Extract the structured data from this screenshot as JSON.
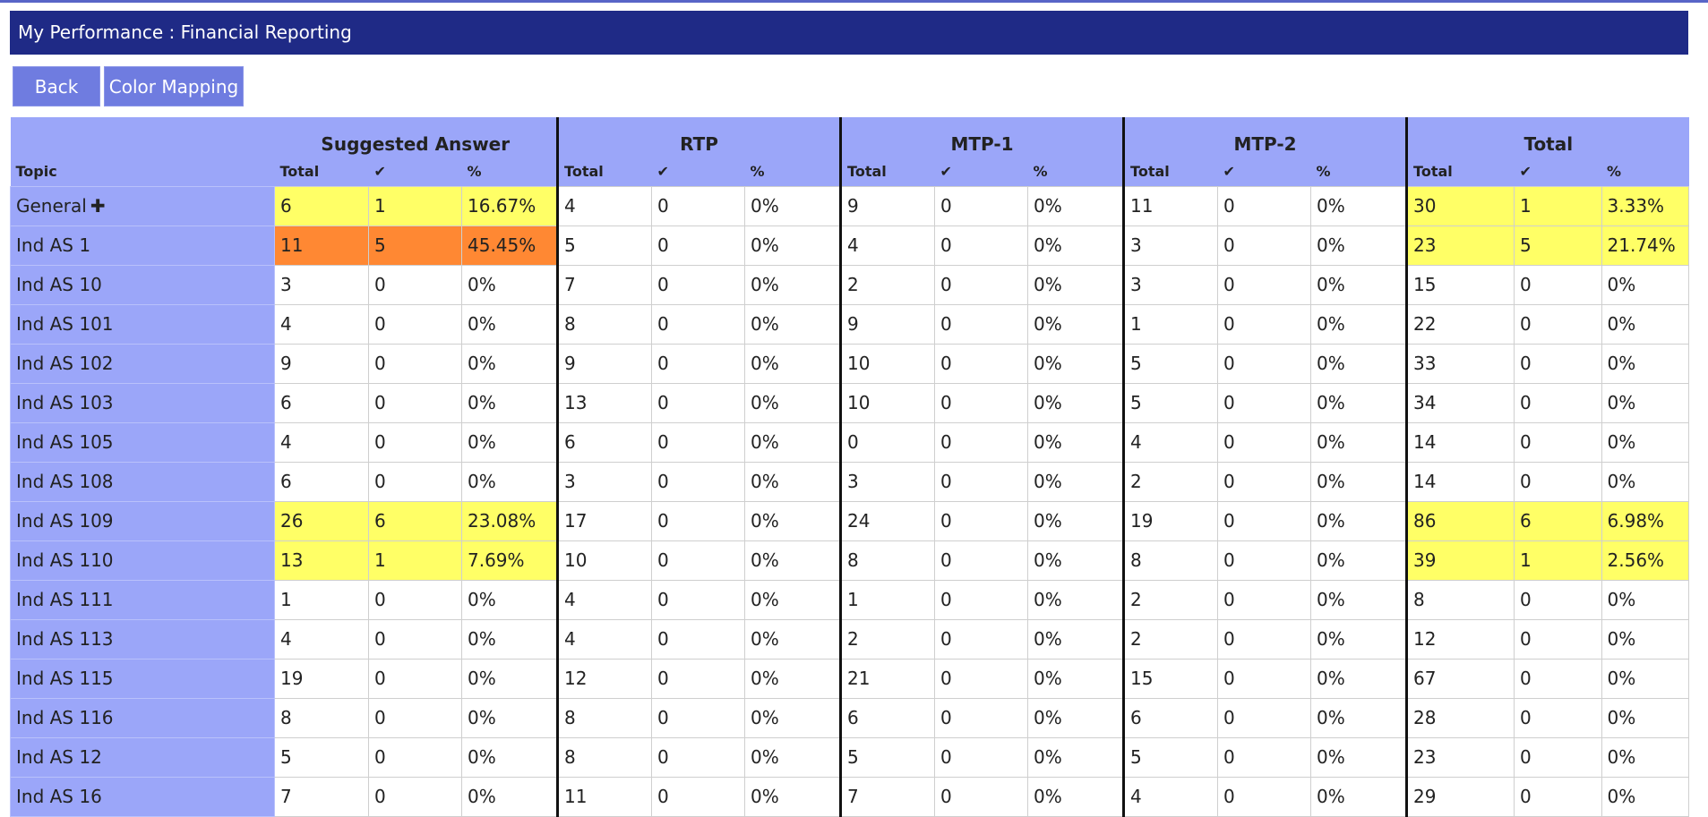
{
  "page": {
    "title": "My Performance : Financial Reporting"
  },
  "toolbar": {
    "back_label": "Back",
    "color_mapping_label": "Color Mapping"
  },
  "table": {
    "topic_header": "Topic",
    "groups": [
      "Suggested Answer",
      "RTP",
      "MTP-1",
      "MTP-2",
      "Total"
    ],
    "sub_headers": [
      "Total",
      "✔",
      "%"
    ],
    "expand_icon": "plus-icon",
    "colors": {
      "header_bg": "#9ba6f9",
      "yellow": "#ffff66",
      "orange": "#ff8833",
      "title_bg": "#1f2a86"
    },
    "rows": [
      {
        "topic": "General",
        "expandable": true,
        "cells": [
          [
            "6",
            "1",
            "16.67%"
          ],
          [
            "4",
            "0",
            "0%"
          ],
          [
            "9",
            "0",
            "0%"
          ],
          [
            "11",
            "0",
            "0%"
          ],
          [
            "30",
            "1",
            "3.33%"
          ]
        ],
        "hl": [
          "y",
          "",
          "",
          "",
          "y"
        ]
      },
      {
        "topic": "Ind AS 1",
        "cells": [
          [
            "11",
            "5",
            "45.45%"
          ],
          [
            "5",
            "0",
            "0%"
          ],
          [
            "4",
            "0",
            "0%"
          ],
          [
            "3",
            "0",
            "0%"
          ],
          [
            "23",
            "5",
            "21.74%"
          ]
        ],
        "hl": [
          "o",
          "",
          "",
          "",
          "y"
        ]
      },
      {
        "topic": "Ind AS 10",
        "cells": [
          [
            "3",
            "0",
            "0%"
          ],
          [
            "7",
            "0",
            "0%"
          ],
          [
            "2",
            "0",
            "0%"
          ],
          [
            "3",
            "0",
            "0%"
          ],
          [
            "15",
            "0",
            "0%"
          ]
        ],
        "hl": [
          "",
          "",
          "",
          "",
          ""
        ]
      },
      {
        "topic": "Ind AS 101",
        "cells": [
          [
            "4",
            "0",
            "0%"
          ],
          [
            "8",
            "0",
            "0%"
          ],
          [
            "9",
            "0",
            "0%"
          ],
          [
            "1",
            "0",
            "0%"
          ],
          [
            "22",
            "0",
            "0%"
          ]
        ],
        "hl": [
          "",
          "",
          "",
          "",
          ""
        ]
      },
      {
        "topic": "Ind AS 102",
        "cells": [
          [
            "9",
            "0",
            "0%"
          ],
          [
            "9",
            "0",
            "0%"
          ],
          [
            "10",
            "0",
            "0%"
          ],
          [
            "5",
            "0",
            "0%"
          ],
          [
            "33",
            "0",
            "0%"
          ]
        ],
        "hl": [
          "",
          "",
          "",
          "",
          ""
        ]
      },
      {
        "topic": "Ind AS 103",
        "cells": [
          [
            "6",
            "0",
            "0%"
          ],
          [
            "13",
            "0",
            "0%"
          ],
          [
            "10",
            "0",
            "0%"
          ],
          [
            "5",
            "0",
            "0%"
          ],
          [
            "34",
            "0",
            "0%"
          ]
        ],
        "hl": [
          "",
          "",
          "",
          "",
          ""
        ]
      },
      {
        "topic": "Ind AS 105",
        "cells": [
          [
            "4",
            "0",
            "0%"
          ],
          [
            "6",
            "0",
            "0%"
          ],
          [
            "0",
            "0",
            "0%"
          ],
          [
            "4",
            "0",
            "0%"
          ],
          [
            "14",
            "0",
            "0%"
          ]
        ],
        "hl": [
          "",
          "",
          "",
          "",
          ""
        ]
      },
      {
        "topic": "Ind AS 108",
        "cells": [
          [
            "6",
            "0",
            "0%"
          ],
          [
            "3",
            "0",
            "0%"
          ],
          [
            "3",
            "0",
            "0%"
          ],
          [
            "2",
            "0",
            "0%"
          ],
          [
            "14",
            "0",
            "0%"
          ]
        ],
        "hl": [
          "",
          "",
          "",
          "",
          ""
        ]
      },
      {
        "topic": "Ind AS 109",
        "cells": [
          [
            "26",
            "6",
            "23.08%"
          ],
          [
            "17",
            "0",
            "0%"
          ],
          [
            "24",
            "0",
            "0%"
          ],
          [
            "19",
            "0",
            "0%"
          ],
          [
            "86",
            "6",
            "6.98%"
          ]
        ],
        "hl": [
          "y",
          "",
          "",
          "",
          "y"
        ]
      },
      {
        "topic": "Ind AS 110",
        "cells": [
          [
            "13",
            "1",
            "7.69%"
          ],
          [
            "10",
            "0",
            "0%"
          ],
          [
            "8",
            "0",
            "0%"
          ],
          [
            "8",
            "0",
            "0%"
          ],
          [
            "39",
            "1",
            "2.56%"
          ]
        ],
        "hl": [
          "y",
          "",
          "",
          "",
          "y"
        ]
      },
      {
        "topic": "Ind AS 111",
        "cells": [
          [
            "1",
            "0",
            "0%"
          ],
          [
            "4",
            "0",
            "0%"
          ],
          [
            "1",
            "0",
            "0%"
          ],
          [
            "2",
            "0",
            "0%"
          ],
          [
            "8",
            "0",
            "0%"
          ]
        ],
        "hl": [
          "",
          "",
          "",
          "",
          ""
        ]
      },
      {
        "topic": "Ind AS 113",
        "cells": [
          [
            "4",
            "0",
            "0%"
          ],
          [
            "4",
            "0",
            "0%"
          ],
          [
            "2",
            "0",
            "0%"
          ],
          [
            "2",
            "0",
            "0%"
          ],
          [
            "12",
            "0",
            "0%"
          ]
        ],
        "hl": [
          "",
          "",
          "",
          "",
          ""
        ]
      },
      {
        "topic": "Ind AS 115",
        "cells": [
          [
            "19",
            "0",
            "0%"
          ],
          [
            "12",
            "0",
            "0%"
          ],
          [
            "21",
            "0",
            "0%"
          ],
          [
            "15",
            "0",
            "0%"
          ],
          [
            "67",
            "0",
            "0%"
          ]
        ],
        "hl": [
          "",
          "",
          "",
          "",
          ""
        ]
      },
      {
        "topic": "Ind AS 116",
        "cells": [
          [
            "8",
            "0",
            "0%"
          ],
          [
            "8",
            "0",
            "0%"
          ],
          [
            "6",
            "0",
            "0%"
          ],
          [
            "6",
            "0",
            "0%"
          ],
          [
            "28",
            "0",
            "0%"
          ]
        ],
        "hl": [
          "",
          "",
          "",
          "",
          ""
        ]
      },
      {
        "topic": "Ind AS 12",
        "cells": [
          [
            "5",
            "0",
            "0%"
          ],
          [
            "8",
            "0",
            "0%"
          ],
          [
            "5",
            "0",
            "0%"
          ],
          [
            "5",
            "0",
            "0%"
          ],
          [
            "23",
            "0",
            "0%"
          ]
        ],
        "hl": [
          "",
          "",
          "",
          "",
          ""
        ]
      },
      {
        "topic": "Ind AS 16",
        "cells": [
          [
            "7",
            "0",
            "0%"
          ],
          [
            "11",
            "0",
            "0%"
          ],
          [
            "7",
            "0",
            "0%"
          ],
          [
            "4",
            "0",
            "0%"
          ],
          [
            "29",
            "0",
            "0%"
          ]
        ],
        "hl": [
          "",
          "",
          "",
          "",
          ""
        ]
      }
    ]
  }
}
